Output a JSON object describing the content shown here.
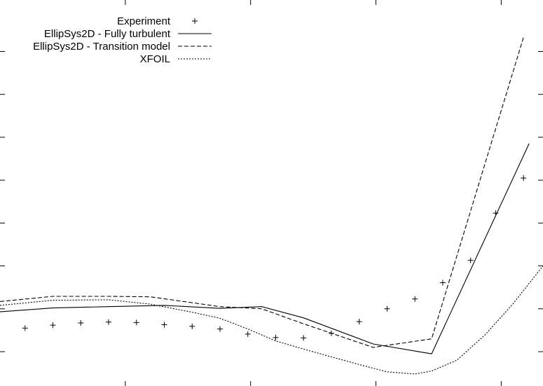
{
  "chart_data": {
    "type": "line",
    "title": "",
    "xlabel": "",
    "ylabel": "",
    "xlim": [
      -0.05,
      1.9
    ],
    "ylim": [
      -0.8,
      8.2
    ],
    "x_minor_ticks": [
      0.4,
      0.85,
      1.3,
      1.75
    ],
    "y_minor_ticks": [
      0,
      1,
      2,
      3,
      4,
      5,
      6,
      7
    ],
    "legend_position": "top-left",
    "grid": false,
    "series": [
      {
        "name": "Experiment",
        "style": "points-plus",
        "x": [
          0.04,
          0.14,
          0.24,
          0.34,
          0.44,
          0.54,
          0.64,
          0.74,
          0.84,
          0.94,
          1.04,
          1.14,
          1.24,
          1.34,
          1.44,
          1.54,
          1.64,
          1.73,
          1.83
        ],
        "values": [
          0.55,
          0.62,
          0.67,
          0.69,
          0.68,
          0.63,
          0.59,
          0.53,
          0.41,
          0.33,
          0.32,
          0.43,
          0.7,
          1.0,
          1.23,
          1.61,
          2.13,
          3.23,
          4.05
        ]
      },
      {
        "name": "EllipSys2D - Fully turbulent",
        "style": "solid",
        "x": [
          -0.05,
          0.14,
          0.34,
          0.54,
          0.74,
          0.89,
          1.04,
          1.29,
          1.5,
          1.85
        ],
        "values": [
          0.93,
          1.02,
          1.05,
          1.08,
          1.01,
          1.05,
          0.79,
          0.18,
          -0.05,
          4.85
        ]
      },
      {
        "name": "EllipSys2D - Transition model",
        "style": "dashed",
        "x": [
          -0.05,
          0.14,
          0.34,
          0.49,
          0.74,
          0.89,
          1.04,
          1.29,
          1.5,
          1.83
        ],
        "values": [
          1.17,
          1.29,
          1.29,
          1.28,
          1.05,
          1.0,
          0.65,
          0.1,
          0.3,
          7.33
        ]
      },
      {
        "name": "XFOIL",
        "style": "dotted",
        "x": [
          -0.05,
          0.14,
          0.34,
          0.49,
          0.64,
          0.74,
          0.84,
          0.94,
          1.04,
          1.14,
          1.24,
          1.34,
          1.44,
          1.5,
          1.59,
          1.69,
          1.79,
          1.9
        ],
        "values": [
          1.08,
          1.2,
          1.21,
          1.11,
          0.92,
          0.78,
          0.53,
          0.25,
          0.06,
          -0.12,
          -0.3,
          -0.47,
          -0.52,
          -0.45,
          -0.2,
          0.38,
          1.1,
          2.0
        ]
      }
    ]
  }
}
